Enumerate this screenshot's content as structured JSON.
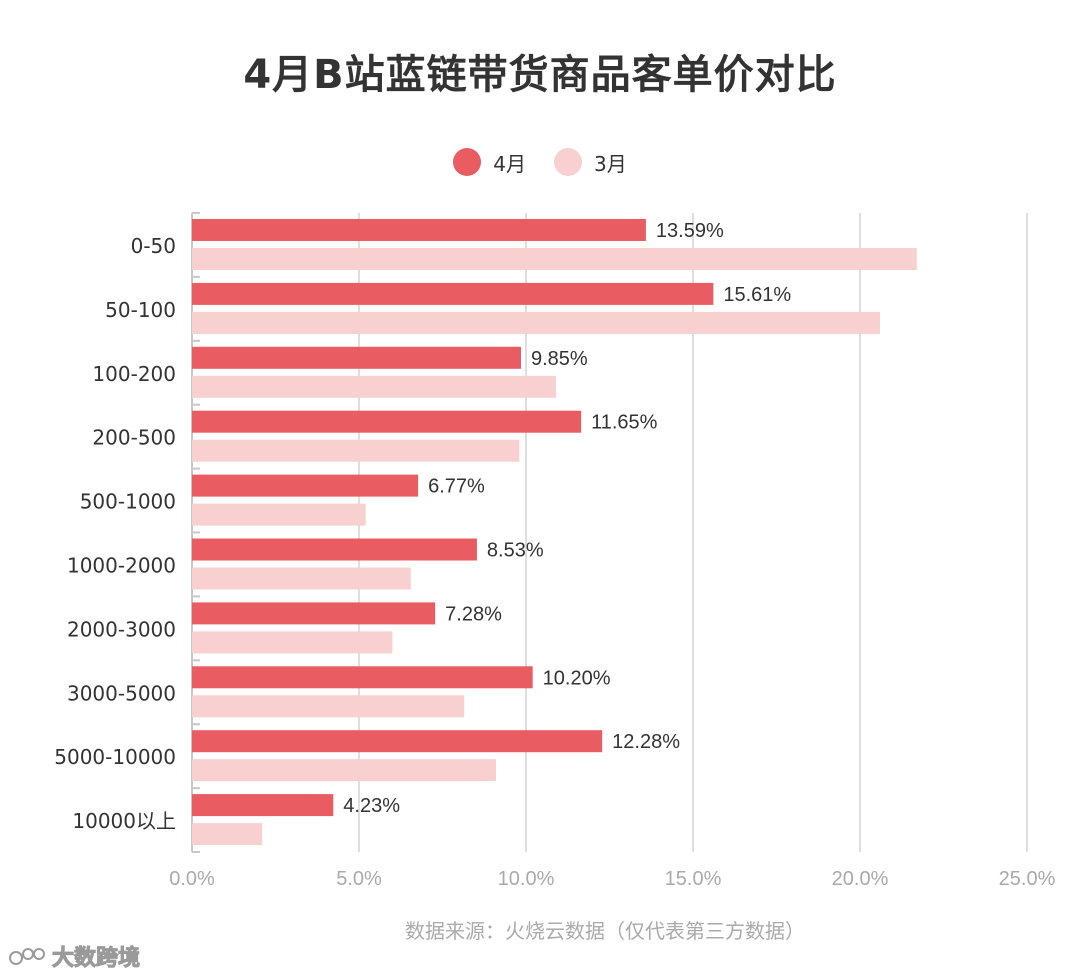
{
  "title": "4月B站蓝链带货商品客单价对比",
  "legend": [
    {
      "label": "4月",
      "color": "#e85c62"
    },
    {
      "label": "3月",
      "color": "#f7d0cf"
    }
  ],
  "source": "数据来源：火烧云数据（仅代表第三方数据）",
  "watermark": "大数跨境",
  "chart_data": {
    "type": "bar",
    "orientation": "horizontal",
    "categories": [
      "0-50",
      "50-100",
      "100-200",
      "200-500",
      "500-1000",
      "1000-2000",
      "2000-3000",
      "3000-5000",
      "5000-10000",
      "10000以上"
    ],
    "series": [
      {
        "name": "4月",
        "color": "#e85c62",
        "values": [
          13.59,
          15.61,
          9.85,
          11.65,
          6.77,
          8.53,
          7.28,
          10.2,
          12.28,
          4.23
        ],
        "labels": [
          "13.59%",
          "15.61%",
          "9.85%",
          "11.65%",
          "6.77%",
          "8.53%",
          "7.28%",
          "10.20%",
          "12.28%",
          "4.23%"
        ]
      },
      {
        "name": "3月",
        "color": "#f7d0cf",
        "values": [
          21.7,
          20.6,
          10.9,
          9.8,
          5.2,
          6.55,
          6.0,
          8.15,
          9.1,
          2.1
        ]
      }
    ],
    "xlim": [
      0,
      25
    ],
    "xticks": [
      "0.0%",
      "5.0%",
      "10.0%",
      "15.0%",
      "20.0%",
      "25.0%"
    ],
    "grid": true,
    "legend_position": "top-center"
  }
}
